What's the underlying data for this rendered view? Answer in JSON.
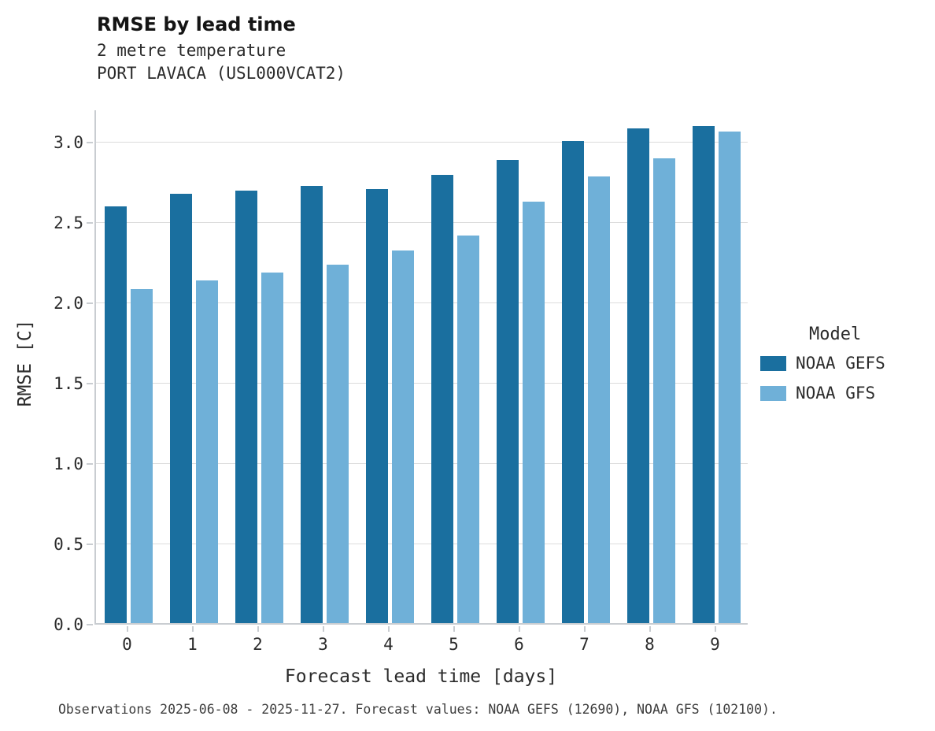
{
  "title": "RMSE by lead time",
  "subtitle_line1": "2 metre temperature",
  "subtitle_line2": "PORT LAVACA (USL000VCAT2)",
  "caption": "Observations 2025-06-08 - 2025-11-27. Forecast values: NOAA GEFS (12690), NOAA GFS (102100).",
  "legend": {
    "title": "Model"
  },
  "colors": {
    "gefs_dark_blue": "#1a6f9f",
    "gfs_light_blue": "#6fb0d8",
    "axis_gray": "#c9cdd1",
    "grid_gray": "#dcdcdc"
  },
  "chart_data": {
    "type": "bar",
    "title": "RMSE by lead time",
    "subtitle": [
      "2 metre temperature",
      "PORT LAVACA (USL000VCAT2)"
    ],
    "xlabel": "Forecast lead time [days]",
    "ylabel": "RMSE [C]",
    "categories": [
      "0",
      "1",
      "2",
      "3",
      "4",
      "5",
      "6",
      "7",
      "8",
      "9"
    ],
    "series": [
      {
        "name": "NOAA GEFS",
        "color": "#1a6f9f",
        "values": [
          2.59,
          2.67,
          2.69,
          2.72,
          2.7,
          2.79,
          2.88,
          3.0,
          3.08,
          3.09
        ]
      },
      {
        "name": "NOAA GFS",
        "color": "#6fb0d8",
        "values": [
          2.08,
          2.13,
          2.18,
          2.23,
          2.32,
          2.41,
          2.62,
          2.78,
          2.89,
          3.06
        ]
      }
    ],
    "ylim": [
      0,
      3.2
    ],
    "yticks": [
      0.0,
      0.5,
      1.0,
      1.5,
      2.0,
      2.5,
      3.0
    ],
    "grid": true,
    "legend_title": "Model",
    "legend_position": "right"
  }
}
